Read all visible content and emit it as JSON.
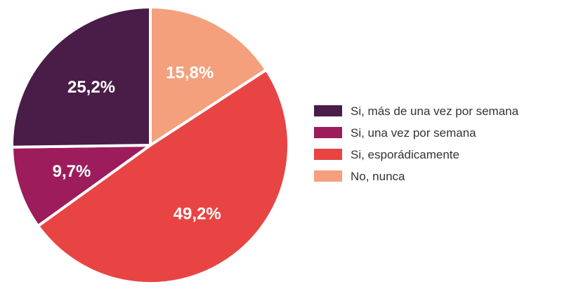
{
  "chart_data": {
    "type": "pie",
    "title": "",
    "legend_position": "right",
    "slices": [
      {
        "label": "No, nunca",
        "value": 15.8,
        "display": "15,8%",
        "color": "#f4a07c"
      },
      {
        "label": "Si, esporádicamente",
        "value": 49.2,
        "display": "49,2%",
        "color": "#e84444"
      },
      {
        "label": "Si, una vez por semana",
        "value": 9.7,
        "display": "9,7%",
        "color": "#9c1c5c"
      },
      {
        "label": "Si, más de una vez por semana",
        "value": 25.2,
        "display": "25,2%",
        "color": "#4a1c48"
      }
    ],
    "legend_order": [
      3,
      2,
      1,
      0
    ]
  }
}
